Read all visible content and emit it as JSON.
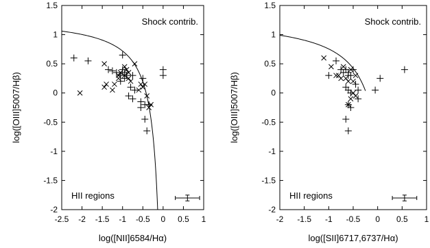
{
  "chart_data": [
    {
      "type": "scatter",
      "xlabel": "log([NII]6584/Hα)",
      "ylabel": "log([OIII]5007/Hβ)",
      "xlim": [
        -2.5,
        1
      ],
      "ylim": [
        -2,
        1.5
      ],
      "xticks": [
        "-2.5",
        "-2",
        "-1.5",
        "-1",
        "-0.5",
        "0",
        "0.5",
        "1"
      ],
      "yticks": [
        "1.5",
        "1",
        "0.5",
        "0",
        "-0.5",
        "-1",
        "-1.5",
        "-2"
      ],
      "annotations": {
        "top_right": "Shock contrib.",
        "bottom_left": "HII regions"
      },
      "curve": {
        "form": "0.61/(x-0.05)+1.3",
        "x_start": -2.5,
        "x_end": -0.1
      },
      "series": [
        {
          "marker": "plus",
          "points": [
            [
              -2.2,
              0.6
            ],
            [
              -1.85,
              0.55
            ],
            [
              -1.35,
              0.4
            ],
            [
              -1.25,
              0.38
            ],
            [
              -1.15,
              0.35
            ],
            [
              -1.05,
              0.3
            ],
            [
              -1.0,
              0.65
            ],
            [
              -1.0,
              0.4
            ],
            [
              -0.95,
              0.35
            ],
            [
              -0.9,
              0.3
            ],
            [
              -0.95,
              0.25
            ],
            [
              -1.05,
              0.2
            ],
            [
              -0.8,
              0.1
            ],
            [
              -0.75,
              0.3
            ],
            [
              -0.7,
              0.05
            ],
            [
              -0.85,
              -0.05
            ],
            [
              -0.75,
              -0.1
            ],
            [
              -0.5,
              0.25
            ],
            [
              -0.55,
              -0.15
            ],
            [
              -0.45,
              -0.2
            ],
            [
              -0.35,
              -0.2
            ],
            [
              -0.55,
              -0.25
            ],
            [
              -0.45,
              -0.45
            ],
            [
              -0.4,
              -0.65
            ],
            [
              0.0,
              0.4
            ],
            [
              0.0,
              0.3
            ]
          ]
        },
        {
          "marker": "cross",
          "points": [
            [
              -2.05,
              0.0
            ],
            [
              -1.45,
              0.5
            ],
            [
              -1.4,
              0.15
            ],
            [
              -1.45,
              0.1
            ],
            [
              -1.2,
              0.15
            ],
            [
              -1.25,
              0.05
            ],
            [
              -1.1,
              0.3
            ],
            [
              -1.1,
              0.25
            ],
            [
              -1.05,
              0.35
            ],
            [
              -0.95,
              0.3
            ],
            [
              -0.95,
              0.45
            ],
            [
              -0.9,
              0.4
            ],
            [
              -0.85,
              0.35
            ],
            [
              -0.85,
              0.25
            ],
            [
              -0.8,
              0.2
            ],
            [
              -0.7,
              0.5
            ],
            [
              -0.6,
              0.05
            ],
            [
              -0.55,
              0.15
            ],
            [
              -0.5,
              0.1
            ],
            [
              -0.45,
              0.15
            ],
            [
              -0.4,
              -0.05
            ],
            [
              -0.3,
              -0.2
            ],
            [
              -0.35,
              -0.25
            ]
          ]
        }
      ],
      "error_bar": {
        "x": 0.6,
        "y": -1.8,
        "xerr": 0.3,
        "yerr": 0.05
      }
    },
    {
      "type": "scatter",
      "xlabel": "log([SII]6717,6737/Hα)",
      "ylabel": "log([OIII]5007/Hβ)",
      "xlim": [
        -2,
        1
      ],
      "ylim": [
        -2,
        1.5
      ],
      "xticks": [
        "-2",
        "-1.5",
        "-1",
        "-0.5",
        "0",
        "0.5",
        "1"
      ],
      "yticks": [
        "1.5",
        "1",
        "0.5",
        "0",
        "-0.5",
        "-1",
        "-1.5",
        "-2"
      ],
      "annotations": {
        "top_right": "Shock contrib.",
        "bottom_left": "HII regions"
      },
      "curve": {
        "form": "0.72/(x-0.32)+1.3",
        "x_start": -2,
        "x_end": -0.25
      },
      "series": [
        {
          "marker": "plus",
          "points": [
            [
              -1.0,
              0.3
            ],
            [
              -0.85,
              0.55
            ],
            [
              -0.75,
              0.4
            ],
            [
              -0.7,
              0.35
            ],
            [
              -0.65,
              0.4
            ],
            [
              -0.6,
              0.35
            ],
            [
              -0.6,
              0.3
            ],
            [
              -0.55,
              0.3
            ],
            [
              -0.5,
              0.4
            ],
            [
              -0.65,
              0.1
            ],
            [
              -0.6,
              0.05
            ],
            [
              -0.55,
              0.0
            ],
            [
              -0.45,
              0.15
            ],
            [
              -0.6,
              -0.2
            ],
            [
              -0.55,
              -0.25
            ],
            [
              -0.65,
              -0.45
            ],
            [
              -0.6,
              -0.65
            ],
            [
              -0.4,
              0.05
            ],
            [
              -0.4,
              -0.1
            ],
            [
              -0.05,
              0.05
            ],
            [
              0.05,
              0.25
            ],
            [
              0.55,
              0.4
            ]
          ]
        },
        {
          "marker": "cross",
          "points": [
            [
              -1.1,
              0.6
            ],
            [
              -0.95,
              0.45
            ],
            [
              -0.85,
              0.3
            ],
            [
              -0.8,
              0.3
            ],
            [
              -0.75,
              0.25
            ],
            [
              -0.7,
              0.45
            ],
            [
              -0.65,
              0.25
            ],
            [
              -0.6,
              0.2
            ],
            [
              -0.55,
              0.4
            ],
            [
              -0.5,
              0.2
            ],
            [
              -0.45,
              0.3
            ],
            [
              -0.45,
              -0.05
            ],
            [
              -0.5,
              0.0
            ],
            [
              -0.55,
              -0.1
            ],
            [
              -0.6,
              -0.2
            ]
          ]
        }
      ],
      "error_bar": {
        "x": 0.55,
        "y": -1.8,
        "xerr": 0.25,
        "yerr": 0.05
      }
    }
  ]
}
